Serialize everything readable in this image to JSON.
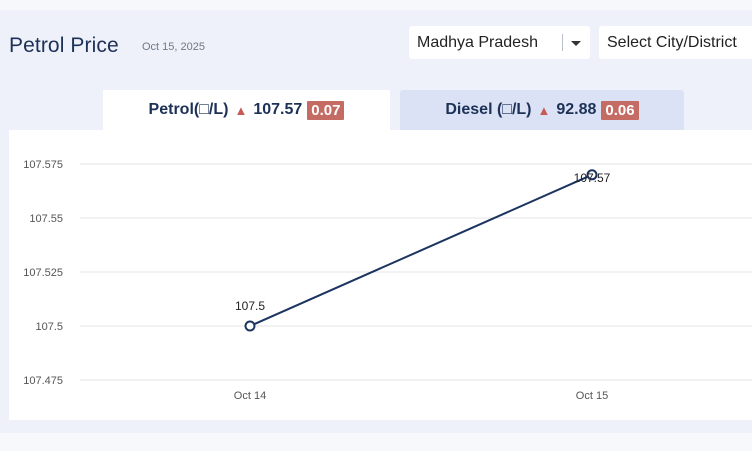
{
  "header": {
    "title": "Petrol Price",
    "date": "Oct 15, 2025"
  },
  "filters": {
    "state_value": "Madhya Pradesh",
    "city_placeholder": "Select City/District"
  },
  "tabs": [
    {
      "label": "Petrol(□/L)",
      "price": "107.57",
      "change": "0.07",
      "selected": true
    },
    {
      "label": "Diesel (□/L)",
      "price": "92.88",
      "change": "0.06",
      "selected": false
    }
  ],
  "colors": {
    "line": "#1c3460",
    "change_badge": "#c46b64",
    "up_arrow": "#c65b55",
    "gridline": "#e4e6ea"
  },
  "chart_data": {
    "type": "line",
    "title": "",
    "xlabel": "",
    "ylabel": "",
    "x": [
      "Oct 14",
      "Oct 15"
    ],
    "series": [
      {
        "values": [
          107.5,
          107.57
        ],
        "labels": [
          "107.5",
          "107.57"
        ]
      }
    ],
    "yticks": [
      "107.475",
      "107.5",
      "107.525",
      "107.55",
      "107.575"
    ],
    "ylim": [
      107.475,
      107.575
    ],
    "grid": true,
    "legend": "none"
  }
}
